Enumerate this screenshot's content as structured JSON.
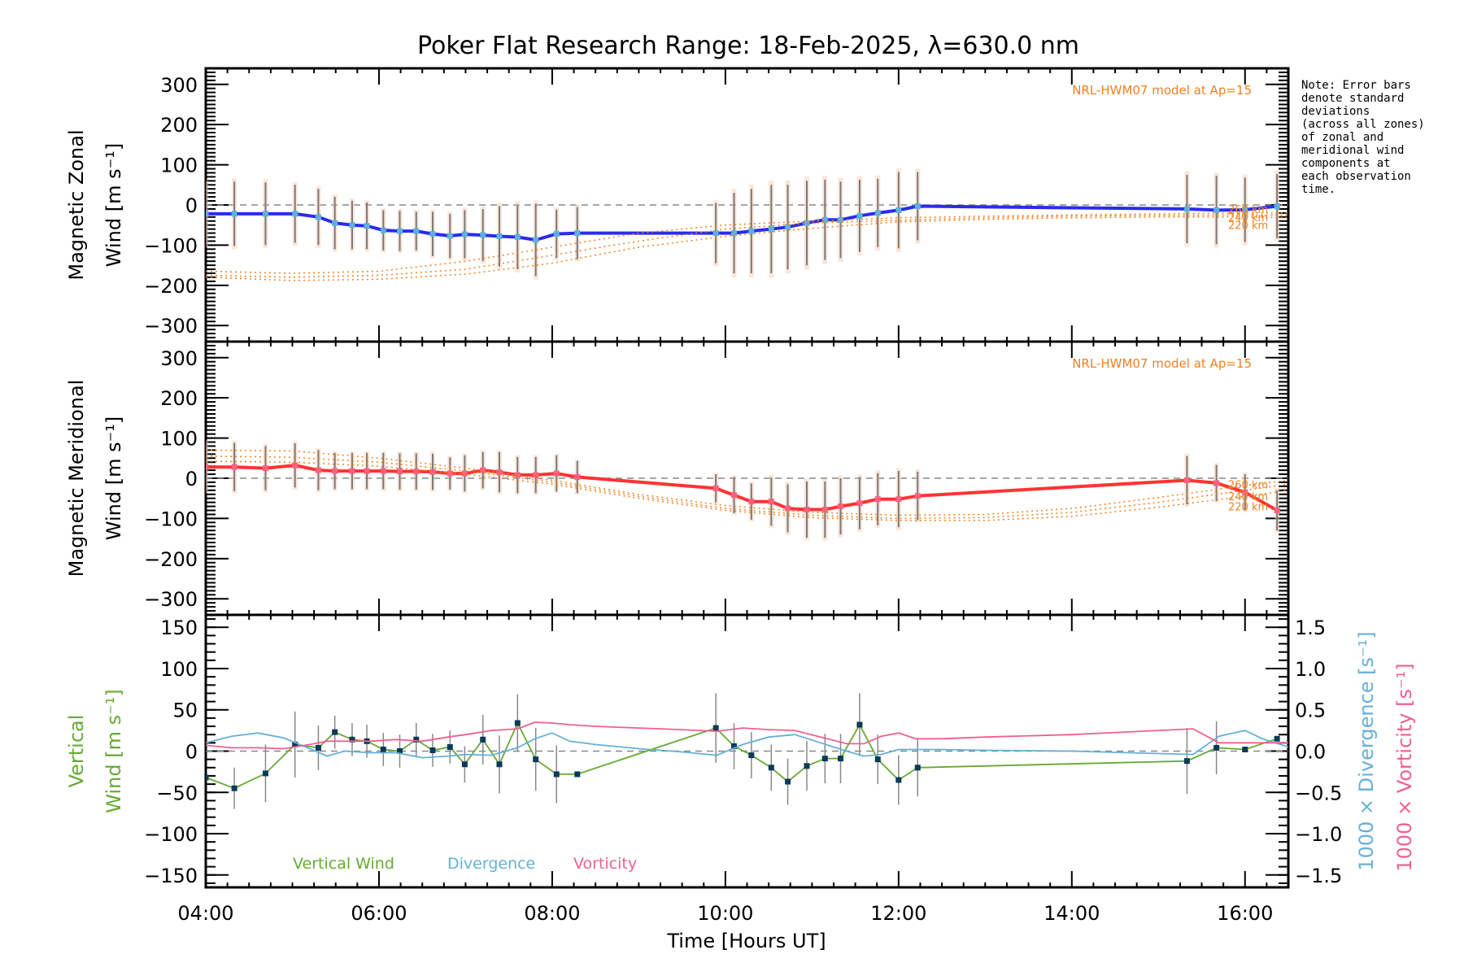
{
  "chart_data": [
    {
      "type": "line",
      "id": "zonal",
      "title": "Poker Flat Research Range: 18-Feb-2025, λ=630.0 nm",
      "ylabel_line1": "Magnetic Zonal",
      "ylabel_line2": "Wind [m s⁻¹]",
      "xlim": [
        4.0,
        16.5
      ],
      "ylim": [
        -340,
        340
      ],
      "yticks": [
        300,
        200,
        100,
        0,
        -100,
        -200,
        -300
      ],
      "zero_line": true,
      "model_label": "NRL-HWM07 model at Ap=15",
      "model_altitudes": [
        "260 km",
        "240 km",
        "220 km"
      ],
      "series": [
        {
          "name": "Zonal wind",
          "color": "#2b2bf0",
          "x": [
            4.0,
            4.33,
            4.69,
            5.03,
            5.3,
            5.49,
            5.69,
            5.86,
            6.05,
            6.24,
            6.43,
            6.62,
            6.82,
            6.99,
            7.2,
            7.39,
            7.6,
            7.81,
            8.05,
            8.29,
            9.89,
            10.1,
            10.3,
            10.53,
            10.72,
            10.94,
            11.15,
            11.33,
            11.55,
            11.76,
            12.0,
            12.22,
            15.33,
            15.67,
            16.0,
            16.37
          ],
          "y": [
            -22,
            -22,
            -22,
            -22,
            -30,
            -45,
            -50,
            -52,
            -63,
            -65,
            -65,
            -72,
            -77,
            -73,
            -75,
            -78,
            -80,
            -87,
            -72,
            -70,
            -70,
            -70,
            -65,
            -60,
            -55,
            -45,
            -37,
            -37,
            -27,
            -20,
            -13,
            -3,
            -10,
            -13,
            -12,
            -3
          ],
          "err": [
            75,
            80,
            78,
            72,
            70,
            65,
            60,
            58,
            50,
            50,
            48,
            55,
            55,
            60,
            65,
            75,
            80,
            90,
            60,
            65,
            75,
            100,
            105,
            110,
            105,
            105,
            100,
            95,
            90,
            85,
            95,
            85,
            85,
            85,
            80,
            80
          ]
        },
        {
          "name": "HWM07 260 km",
          "color": "#f08020",
          "style": "dotted",
          "x": [
            4.0,
            5.0,
            6.0,
            7.0,
            8.0,
            9.0,
            10.0,
            11.0,
            12.0,
            13.0,
            14.0,
            15.0,
            16.0,
            16.5
          ],
          "y": [
            -165,
            -170,
            -165,
            -140,
            -105,
            -70,
            -50,
            -40,
            -32,
            -28,
            -25,
            -22,
            -20,
            -20
          ]
        },
        {
          "name": "HWM07 240 km",
          "color": "#f08020",
          "style": "dotted",
          "x": [
            4.0,
            5.0,
            6.0,
            7.0,
            8.0,
            9.0,
            10.0,
            11.0,
            12.0,
            13.0,
            14.0,
            15.0,
            16.0,
            16.5
          ],
          "y": [
            -175,
            -180,
            -175,
            -160,
            -125,
            -90,
            -60,
            -45,
            -38,
            -32,
            -28,
            -26,
            -25,
            -25
          ]
        },
        {
          "name": "HWM07 220 km",
          "color": "#f08020",
          "style": "dotted",
          "x": [
            4.0,
            5.0,
            6.0,
            7.0,
            8.0,
            9.0,
            10.0,
            11.0,
            12.0,
            13.0,
            14.0,
            15.0,
            16.0,
            16.5
          ],
          "y": [
            -180,
            -188,
            -185,
            -172,
            -145,
            -105,
            -78,
            -58,
            -42,
            -36,
            -32,
            -30,
            -30,
            -32
          ]
        }
      ]
    },
    {
      "type": "line",
      "id": "meridional",
      "ylabel_line1": "Magnetic Meridional",
      "ylabel_line2": "Wind [m s⁻¹]",
      "xlim": [
        4.0,
        16.5
      ],
      "ylim": [
        -340,
        340
      ],
      "yticks": [
        300,
        200,
        100,
        0,
        -100,
        -200,
        -300
      ],
      "zero_line": true,
      "model_label": "NRL-HWM07 model at Ap=15",
      "model_altitudes": [
        "260 km",
        "240 km",
        "220 km"
      ],
      "series": [
        {
          "name": "Meridional wind",
          "color": "#ff3333",
          "x": [
            4.0,
            4.33,
            4.69,
            5.03,
            5.3,
            5.49,
            5.69,
            5.86,
            6.05,
            6.24,
            6.43,
            6.62,
            6.82,
            6.99,
            7.2,
            7.39,
            7.6,
            7.81,
            8.05,
            8.29,
            9.89,
            10.1,
            10.3,
            10.53,
            10.72,
            10.94,
            11.15,
            11.33,
            11.55,
            11.76,
            12.0,
            12.22,
            15.33,
            15.67,
            16.0,
            16.37
          ],
          "y": [
            28,
            28,
            25,
            32,
            20,
            18,
            18,
            18,
            18,
            17,
            17,
            16,
            12,
            12,
            20,
            15,
            8,
            8,
            12,
            3,
            -25,
            -42,
            -58,
            -58,
            -75,
            -78,
            -78,
            -70,
            -62,
            -52,
            -52,
            -44,
            -5,
            -12,
            -35,
            -80
          ],
          "err": [
            60,
            60,
            55,
            55,
            50,
            45,
            45,
            45,
            45,
            45,
            45,
            45,
            40,
            45,
            45,
            50,
            45,
            45,
            45,
            40,
            35,
            45,
            45,
            60,
            60,
            70,
            70,
            70,
            65,
            65,
            70,
            60,
            60,
            45,
            45,
            50
          ]
        },
        {
          "name": "HWM07 260 km",
          "color": "#f08020",
          "style": "dotted",
          "x": [
            4.0,
            5.0,
            6.0,
            7.0,
            8.0,
            9.0,
            10.0,
            11.0,
            12.0,
            13.0,
            14.0,
            15.0,
            16.0,
            16.5
          ],
          "y": [
            70,
            68,
            50,
            25,
            -5,
            -40,
            -68,
            -85,
            -92,
            -90,
            -75,
            -48,
            -18,
            -5
          ]
        },
        {
          "name": "HWM07 240 km",
          "color": "#f08020",
          "style": "dotted",
          "x": [
            4.0,
            5.0,
            6.0,
            7.0,
            8.0,
            9.0,
            10.0,
            11.0,
            12.0,
            13.0,
            14.0,
            15.0,
            16.0,
            16.5
          ],
          "y": [
            55,
            52,
            40,
            18,
            -10,
            -45,
            -75,
            -92,
            -100,
            -98,
            -85,
            -60,
            -30,
            -15
          ]
        },
        {
          "name": "HWM07 220 km",
          "color": "#f08020",
          "style": "dotted",
          "x": [
            4.0,
            5.0,
            6.0,
            7.0,
            8.0,
            9.0,
            10.0,
            11.0,
            12.0,
            13.0,
            14.0,
            15.0,
            16.0,
            16.5
          ],
          "y": [
            42,
            40,
            30,
            10,
            -15,
            -50,
            -80,
            -98,
            -105,
            -105,
            -95,
            -72,
            -45,
            -30
          ]
        }
      ]
    },
    {
      "type": "line",
      "id": "vertical",
      "ylabel_line1": "Vertical",
      "ylabel_line2": "Wind [m s⁻¹]",
      "y2label_div": "1000 × Divergence [s⁻¹]",
      "y2label_vort": "1000 × Vorticity [s⁻¹]",
      "xlabel": "Time [Hours UT]",
      "xlim": [
        4.0,
        16.5
      ],
      "xticks": [
        "04:00",
        "06:00",
        "08:00",
        "10:00",
        "12:00",
        "14:00",
        "16:00"
      ],
      "xtick_values": [
        4,
        6,
        8,
        10,
        12,
        14,
        16
      ],
      "ylim": [
        -165,
        165
      ],
      "yticks": [
        150,
        100,
        50,
        0,
        -50,
        -100,
        -150
      ],
      "y2lim": [
        -1.65,
        1.65
      ],
      "y2ticks": [
        "1.5",
        "1.0",
        "0.5",
        "0.0",
        "-0.5",
        "-1.0",
        "-1.5"
      ],
      "y2tick_values": [
        1.5,
        1.0,
        0.5,
        0.0,
        -0.5,
        -1.0,
        -1.5
      ],
      "zero_line": true,
      "legend": [
        {
          "label": "Vertical Wind",
          "color": "#66aa33"
        },
        {
          "label": "Divergence",
          "color": "#66b0d8"
        },
        {
          "label": "Vorticity",
          "color": "#f06090"
        }
      ],
      "series": [
        {
          "name": "Vertical Wind",
          "axis": "left",
          "color": "#66aa33",
          "x": [
            4.0,
            4.33,
            4.69,
            5.03,
            5.3,
            5.49,
            5.69,
            5.86,
            6.05,
            6.24,
            6.43,
            6.62,
            6.82,
            6.99,
            7.2,
            7.39,
            7.6,
            7.81,
            8.05,
            8.29,
            9.89,
            10.1,
            10.3,
            10.53,
            10.72,
            10.94,
            11.15,
            11.33,
            11.55,
            11.76,
            12.0,
            12.22,
            15.33,
            15.67,
            16.0,
            16.37
          ],
          "y": [
            -32,
            -45,
            -27,
            8,
            4,
            23,
            14,
            12,
            2,
            0,
            14,
            1,
            5,
            -16,
            14,
            -16,
            34,
            -10,
            -28,
            -28,
            28,
            6,
            -5,
            -20,
            -37,
            -18,
            -9,
            -9,
            32,
            -10,
            -35,
            -20,
            -12,
            4,
            2,
            15
          ],
          "err": [
            0,
            25,
            35,
            40,
            27,
            20,
            20,
            20,
            20,
            20,
            20,
            20,
            20,
            22,
            30,
            35,
            35,
            38,
            35,
            0,
            42,
            28,
            28,
            28,
            28,
            30,
            30,
            30,
            38,
            30,
            30,
            35,
            40,
            32,
            0,
            0
          ]
        },
        {
          "name": "Divergence",
          "axis": "right",
          "color": "#66b0d8",
          "x": [
            4.0,
            4.3,
            4.6,
            4.9,
            5.2,
            5.4,
            5.6,
            5.9,
            6.2,
            6.5,
            6.8,
            7.0,
            7.3,
            7.6,
            7.8,
            8.0,
            8.2,
            8.5,
            9.0,
            9.5,
            9.9,
            10.2,
            10.5,
            10.8,
            11.1,
            11.4,
            11.6,
            11.8,
            12.0,
            12.5,
            13.0,
            14.0,
            15.0,
            15.4,
            15.7,
            16.0,
            16.2,
            16.5
          ],
          "y": [
            0.1,
            0.18,
            0.22,
            0.16,
            0.03,
            -0.06,
            0.0,
            -0.02,
            -0.02,
            -0.08,
            -0.06,
            -0.04,
            -0.05,
            0.04,
            0.15,
            0.22,
            0.12,
            0.08,
            0.03,
            -0.01,
            -0.05,
            0.08,
            0.17,
            0.2,
            0.1,
            0.0,
            -0.06,
            -0.04,
            0.02,
            0.02,
            0.01,
            0.0,
            -0.03,
            -0.04,
            0.18,
            0.25,
            0.15,
            0.05
          ]
        },
        {
          "name": "Vorticity",
          "axis": "right",
          "color": "#f06090",
          "x": [
            4.0,
            4.3,
            4.6,
            4.9,
            5.2,
            5.4,
            5.6,
            5.9,
            6.2,
            6.5,
            6.8,
            7.0,
            7.3,
            7.6,
            7.8,
            8.0,
            8.2,
            8.5,
            9.0,
            9.5,
            9.9,
            10.2,
            10.5,
            10.8,
            11.1,
            11.4,
            11.6,
            11.8,
            12.0,
            12.2,
            12.5,
            13.0,
            14.0,
            15.0,
            15.4,
            15.7,
            16.0,
            16.2,
            16.5
          ],
          "y": [
            0.07,
            0.04,
            0.04,
            0.03,
            0.08,
            0.12,
            0.12,
            0.12,
            0.14,
            0.12,
            0.17,
            0.2,
            0.25,
            0.27,
            0.35,
            0.34,
            0.32,
            0.3,
            0.28,
            0.26,
            0.24,
            0.28,
            0.26,
            0.25,
            0.17,
            0.09,
            0.09,
            0.18,
            0.22,
            0.15,
            0.15,
            0.17,
            0.2,
            0.25,
            0.27,
            0.1,
            0.1,
            0.1,
            0.1
          ]
        }
      ]
    }
  ],
  "note": "Note: Error bars\ndenote standard\ndeviations\n(across all zones)\nof zonal and\nmeridional wind\ncomponents at\neach observation\ntime."
}
